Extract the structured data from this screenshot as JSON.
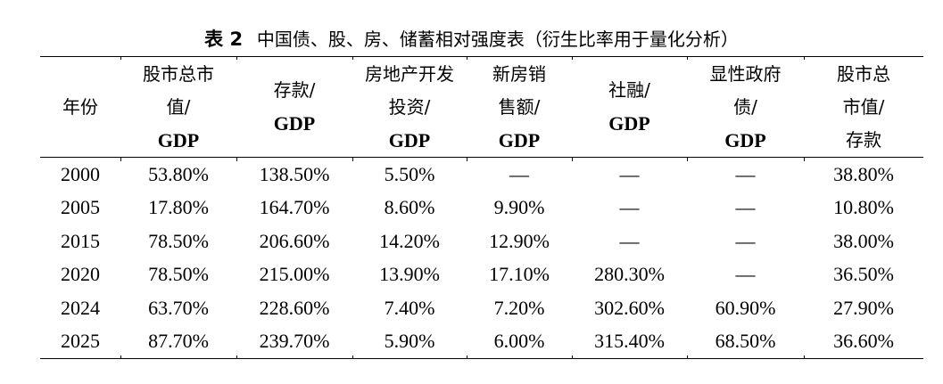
{
  "caption": {
    "label": "表 2",
    "title": "中国债、股、房、储蓄相对强度表（衍生比率用于量化分析）"
  },
  "table": {
    "headers": [
      {
        "lines": [
          "年份"
        ],
        "gdp_line": null
      },
      {
        "lines": [
          "股市总市",
          "值/"
        ],
        "gdp_line": "GDP"
      },
      {
        "lines": [
          "存款/"
        ],
        "gdp_line": "GDP"
      },
      {
        "lines": [
          "房地产开发",
          "投资/"
        ],
        "gdp_line": "GDP"
      },
      {
        "lines": [
          "新房销",
          "售额/"
        ],
        "gdp_line": "GDP"
      },
      {
        "lines": [
          "社融/"
        ],
        "gdp_line": "GDP"
      },
      {
        "lines": [
          "显性政府",
          "债/"
        ],
        "gdp_line": "GDP"
      },
      {
        "lines": [
          "股市总",
          "市值/",
          "存款"
        ],
        "gdp_line": null
      }
    ],
    "rows": [
      [
        "2000",
        "53.80%",
        "138.50%",
        "5.50%",
        "—",
        "—",
        "—",
        "38.80%"
      ],
      [
        "2005",
        "17.80%",
        "164.70%",
        "8.60%",
        "9.90%",
        "—",
        "—",
        "10.80%"
      ],
      [
        "2015",
        "78.50%",
        "206.60%",
        "14.20%",
        "12.90%",
        "—",
        "—",
        "38.00%"
      ],
      [
        "2020",
        "78.50%",
        "215.00%",
        "13.90%",
        "17.10%",
        "280.30%",
        "—",
        "36.50%"
      ],
      [
        "2024",
        "63.70%",
        "228.60%",
        "7.40%",
        "7.20%",
        "302.60%",
        "60.90%",
        "27.90%"
      ],
      [
        "2025",
        "87.70%",
        "239.70%",
        "5.90%",
        "6.00%",
        "315.40%",
        "68.50%",
        "36.60%"
      ]
    ]
  },
  "chart_data": {
    "type": "table",
    "title": "表 2 中国债、股、房、储蓄相对强度表（衍生比率用于量化分析）",
    "columns": [
      "年份",
      "股市总市值/GDP",
      "存款/GDP",
      "房地产开发投资/GDP",
      "新房销售额/GDP",
      "社融/GDP",
      "显性政府债/GDP",
      "股市总市值/存款"
    ],
    "rows": [
      [
        "2000",
        "53.80%",
        "138.50%",
        "5.50%",
        "—",
        "—",
        "—",
        "38.80%"
      ],
      [
        "2005",
        "17.80%",
        "164.70%",
        "8.60%",
        "9.90%",
        "—",
        "—",
        "10.80%"
      ],
      [
        "2015",
        "78.50%",
        "206.60%",
        "14.20%",
        "12.90%",
        "—",
        "—",
        "38.00%"
      ],
      [
        "2020",
        "78.50%",
        "215.00%",
        "13.90%",
        "17.10%",
        "280.30%",
        "—",
        "36.50%"
      ],
      [
        "2024",
        "63.70%",
        "228.60%",
        "7.40%",
        "7.20%",
        "302.60%",
        "60.90%",
        "27.90%"
      ],
      [
        "2025",
        "87.70%",
        "239.70%",
        "5.90%",
        "6.00%",
        "315.40%",
        "68.50%",
        "36.60%"
      ]
    ]
  }
}
